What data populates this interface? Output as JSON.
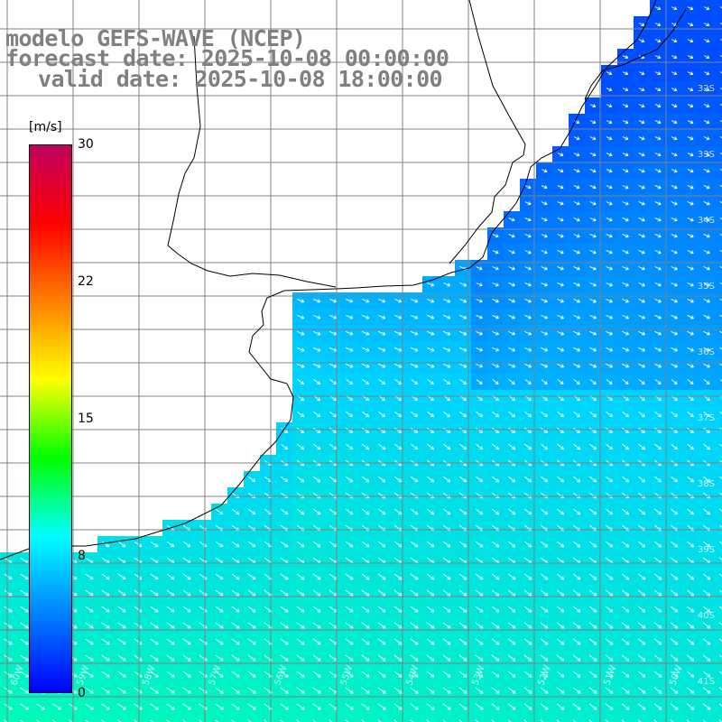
{
  "title": {
    "line1": "modelo GEFS-WAVE (NCEP)",
    "line2": "forecast date: 2025-10-08 00:00:00",
    "line3": "valid date: 2025-10-08 18:00:00"
  },
  "colorbar": {
    "unit": "[m/s]",
    "ticks": [
      "30",
      "22",
      "15",
      "8",
      "0"
    ],
    "tick_values": [
      30,
      22,
      15,
      8,
      0
    ],
    "range": [
      0,
      30
    ],
    "colors": [
      "#0000ff",
      "#0080ff",
      "#00ffff",
      "#00ff00",
      "#ffff00",
      "#ff8000",
      "#ff0000",
      "#c00060"
    ]
  },
  "map": {
    "lat_labels": [
      "32S",
      "33S",
      "34S",
      "35S",
      "36S",
      "37S",
      "38S",
      "39S",
      "40S",
      "41S"
    ],
    "lon_labels": [
      "60W",
      "59W",
      "58W",
      "57W",
      "56W",
      "55W",
      "54W",
      "53W",
      "52W",
      "51W",
      "50W"
    ],
    "field": "wind speed and direction",
    "land_color": "#ffffff",
    "coast_color": "#000000",
    "grid_color": "#808080",
    "arrow_color": "#ffffff"
  }
}
